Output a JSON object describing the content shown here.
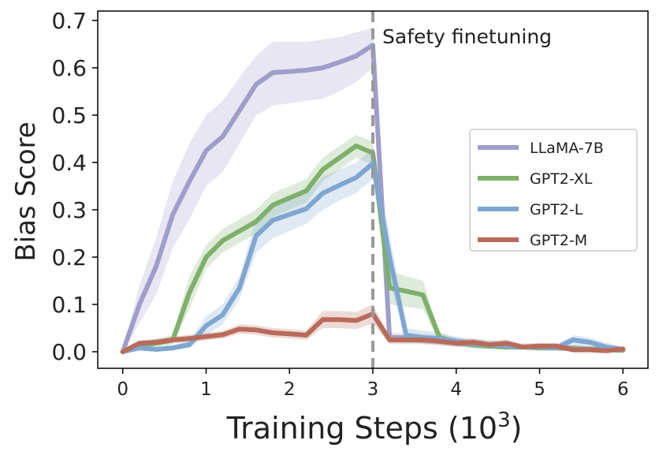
{
  "chart_data": {
    "type": "line",
    "title": "",
    "xlabel": "Training Steps (10",
    "xlabel_sup": "3",
    "xlabel_close": ")",
    "ylabel": "Bias Score",
    "xlim": [
      -0.3,
      6.3
    ],
    "ylim": [
      -0.035,
      0.72
    ],
    "xticks": [
      0,
      1,
      2,
      3,
      4,
      5,
      6
    ],
    "xtick_labels": [
      "0",
      "1",
      "2",
      "3",
      "4",
      "5",
      "6"
    ],
    "yticks": [
      0.0,
      0.1,
      0.2,
      0.3,
      0.4,
      0.5,
      0.6,
      0.7
    ],
    "ytick_labels": [
      "0.0",
      "0.1",
      "0.2",
      "0.3",
      "0.4",
      "0.5",
      "0.6",
      "0.7"
    ],
    "grid": false,
    "legend_position": "center-right",
    "annotation": {
      "x": 3,
      "text": "Safety finetuning",
      "line_color": "#999999"
    },
    "series": [
      {
        "name": "LLaMA-7B",
        "color": "#9f9dca",
        "x": [
          0,
          0.2,
          0.4,
          0.6,
          0.8,
          1.0,
          1.2,
          1.4,
          1.6,
          1.8,
          2.0,
          2.2,
          2.4,
          2.6,
          2.8,
          3.0,
          3.2,
          3.4,
          3.6,
          3.8,
          4.0,
          4.2,
          4.4,
          4.6,
          4.8,
          5.0,
          5.2,
          5.4,
          5.6,
          5.8,
          6.0
        ],
        "values": [
          0.0,
          0.1,
          0.18,
          0.29,
          0.36,
          0.425,
          0.455,
          0.51,
          0.565,
          0.59,
          0.592,
          0.595,
          0.6,
          0.612,
          0.625,
          0.648,
          0.03,
          0.03,
          0.028,
          0.025,
          0.02,
          0.015,
          0.012,
          0.012,
          0.01,
          0.01,
          0.01,
          0.008,
          0.006,
          0.005,
          0.005
        ],
        "lower": [
          0.0,
          0.06,
          0.12,
          0.22,
          0.28,
          0.35,
          0.38,
          0.44,
          0.5,
          0.52,
          0.525,
          0.53,
          0.535,
          0.55,
          0.57,
          0.6,
          0.02,
          0.02,
          0.018,
          0.015,
          0.012,
          0.008,
          0.006,
          0.006,
          0.005,
          0.005,
          0.005,
          0.004,
          0.003,
          0.002,
          0.002
        ],
        "upper": [
          0.0,
          0.14,
          0.24,
          0.36,
          0.44,
          0.5,
          0.53,
          0.58,
          0.625,
          0.655,
          0.655,
          0.655,
          0.66,
          0.665,
          0.675,
          0.685,
          0.04,
          0.04,
          0.038,
          0.035,
          0.03,
          0.022,
          0.018,
          0.018,
          0.015,
          0.015,
          0.015,
          0.012,
          0.01,
          0.008,
          0.008
        ]
      },
      {
        "name": "GPT2-XL",
        "color": "#7db06a",
        "x": [
          0,
          0.2,
          0.4,
          0.6,
          0.8,
          1.0,
          1.2,
          1.4,
          1.6,
          1.8,
          2.0,
          2.2,
          2.4,
          2.6,
          2.8,
          3.0,
          3.2,
          3.4,
          3.6,
          3.8,
          4.0,
          4.2,
          4.4,
          4.6,
          4.8,
          5.0,
          5.2,
          5.4,
          5.6,
          5.8,
          6.0
        ],
        "values": [
          0.0,
          0.012,
          0.018,
          0.025,
          0.125,
          0.2,
          0.235,
          0.255,
          0.275,
          0.31,
          0.325,
          0.34,
          0.385,
          0.41,
          0.435,
          0.42,
          0.135,
          0.128,
          0.12,
          0.03,
          0.02,
          0.015,
          0.012,
          0.01,
          0.01,
          0.008,
          0.008,
          0.006,
          0.005,
          0.004,
          0.003
        ],
        "lower": [
          0.0,
          0.006,
          0.01,
          0.015,
          0.09,
          0.175,
          0.21,
          0.23,
          0.25,
          0.285,
          0.3,
          0.315,
          0.36,
          0.385,
          0.41,
          0.395,
          0.1,
          0.095,
          0.09,
          0.02,
          0.012,
          0.008,
          0.006,
          0.005,
          0.005,
          0.004,
          0.004,
          0.003,
          0.002,
          0.002,
          0.001
        ],
        "upper": [
          0.0,
          0.02,
          0.028,
          0.035,
          0.16,
          0.225,
          0.26,
          0.28,
          0.3,
          0.335,
          0.35,
          0.365,
          0.41,
          0.435,
          0.458,
          0.445,
          0.17,
          0.16,
          0.15,
          0.04,
          0.028,
          0.022,
          0.018,
          0.015,
          0.015,
          0.012,
          0.012,
          0.01,
          0.008,
          0.007,
          0.006
        ]
      },
      {
        "name": "GPT2-L",
        "color": "#7fa6d0",
        "x": [
          0,
          0.2,
          0.4,
          0.6,
          0.8,
          1.0,
          1.2,
          1.4,
          1.6,
          1.8,
          2.0,
          2.2,
          2.4,
          2.6,
          2.8,
          3.0,
          3.2,
          3.4,
          3.6,
          3.8,
          4.0,
          4.2,
          4.4,
          4.6,
          4.8,
          5.0,
          5.2,
          5.4,
          5.6,
          5.8,
          6.0
        ],
        "values": [
          0.0,
          0.008,
          0.005,
          0.008,
          0.015,
          0.055,
          0.078,
          0.135,
          0.245,
          0.278,
          0.29,
          0.302,
          0.335,
          0.352,
          0.368,
          0.398,
          0.2,
          0.035,
          0.03,
          0.028,
          0.022,
          0.018,
          0.015,
          0.012,
          0.01,
          0.01,
          0.008,
          0.025,
          0.02,
          0.01,
          0.005
        ],
        "lower": [
          0.0,
          0.003,
          0.001,
          0.003,
          0.008,
          0.035,
          0.058,
          0.11,
          0.21,
          0.24,
          0.255,
          0.27,
          0.3,
          0.32,
          0.335,
          0.365,
          0.15,
          0.02,
          0.018,
          0.016,
          0.012,
          0.008,
          0.006,
          0.004,
          0.003,
          0.003,
          0.002,
          0.012,
          0.01,
          0.004,
          0.001
        ],
        "upper": [
          0.0,
          0.014,
          0.01,
          0.014,
          0.024,
          0.075,
          0.1,
          0.16,
          0.28,
          0.315,
          0.325,
          0.335,
          0.37,
          0.385,
          0.4,
          0.43,
          0.25,
          0.05,
          0.045,
          0.04,
          0.032,
          0.028,
          0.025,
          0.02,
          0.018,
          0.018,
          0.015,
          0.035,
          0.03,
          0.02,
          0.01
        ]
      },
      {
        "name": "GPT2-M",
        "color": "#b86b5a",
        "x": [
          0,
          0.2,
          0.4,
          0.6,
          0.8,
          1.0,
          1.2,
          1.4,
          1.6,
          1.8,
          2.0,
          2.2,
          2.4,
          2.6,
          2.8,
          3.0,
          3.2,
          3.4,
          3.6,
          3.8,
          4.0,
          4.2,
          4.4,
          4.6,
          4.8,
          5.0,
          5.2,
          5.4,
          5.6,
          5.8,
          6.0
        ],
        "values": [
          0.0,
          0.018,
          0.02,
          0.025,
          0.028,
          0.032,
          0.036,
          0.048,
          0.046,
          0.04,
          0.038,
          0.035,
          0.068,
          0.068,
          0.066,
          0.08,
          0.025,
          0.025,
          0.025,
          0.022,
          0.018,
          0.02,
          0.015,
          0.018,
          0.01,
          0.012,
          0.012,
          0.004,
          0.004,
          0.002,
          0.006
        ],
        "lower": [
          0.0,
          0.012,
          0.014,
          0.018,
          0.02,
          0.024,
          0.028,
          0.038,
          0.036,
          0.03,
          0.028,
          0.025,
          0.05,
          0.05,
          0.048,
          0.06,
          0.016,
          0.016,
          0.016,
          0.014,
          0.01,
          0.012,
          0.008,
          0.01,
          0.005,
          0.006,
          0.006,
          0.001,
          0.001,
          0.0,
          0.002
        ],
        "upper": [
          0.0,
          0.024,
          0.026,
          0.032,
          0.036,
          0.04,
          0.044,
          0.058,
          0.056,
          0.05,
          0.048,
          0.045,
          0.086,
          0.086,
          0.084,
          0.1,
          0.034,
          0.034,
          0.034,
          0.03,
          0.026,
          0.028,
          0.022,
          0.026,
          0.015,
          0.018,
          0.018,
          0.008,
          0.008,
          0.005,
          0.01
        ]
      }
    ]
  }
}
